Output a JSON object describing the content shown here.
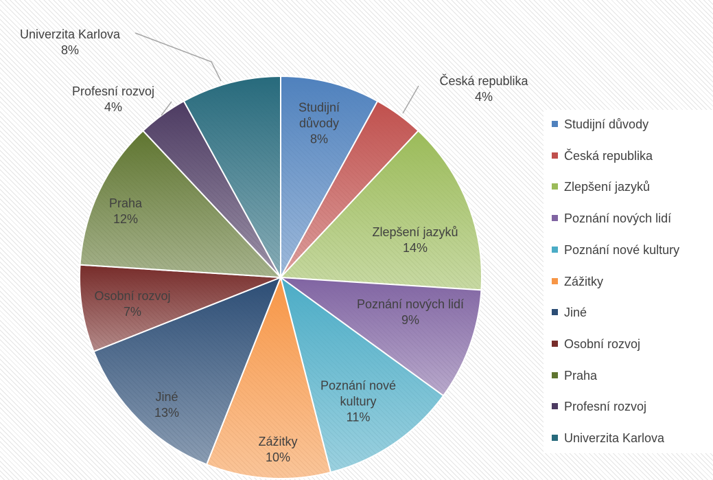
{
  "chart_data": {
    "type": "pie",
    "categories": [
      "Studijní důvody",
      "Česká republika",
      "Zlepšení jazyků",
      "Poznání nových lidí",
      "Poznání nové kultury",
      "Zážitky",
      "Jiné",
      "Osobní rozvoj",
      "Praha",
      "Profesní rozvoj",
      "Univerzita Karlova"
    ],
    "values": [
      8,
      4,
      14,
      9,
      11,
      10,
      13,
      7,
      12,
      4,
      8
    ],
    "value_labels": [
      "8%",
      "4%",
      "14%",
      "9%",
      "11%",
      "10%",
      "13%",
      "7%",
      "12%",
      "4%",
      "8%"
    ],
    "colors": [
      "#4f81bd",
      "#c0504d",
      "#9bbb59",
      "#8064a2",
      "#4bacc6",
      "#f79646",
      "#2c4d75",
      "#772c2a",
      "#5f7530",
      "#4d3b62",
      "#276a7c"
    ],
    "legend": "right"
  }
}
